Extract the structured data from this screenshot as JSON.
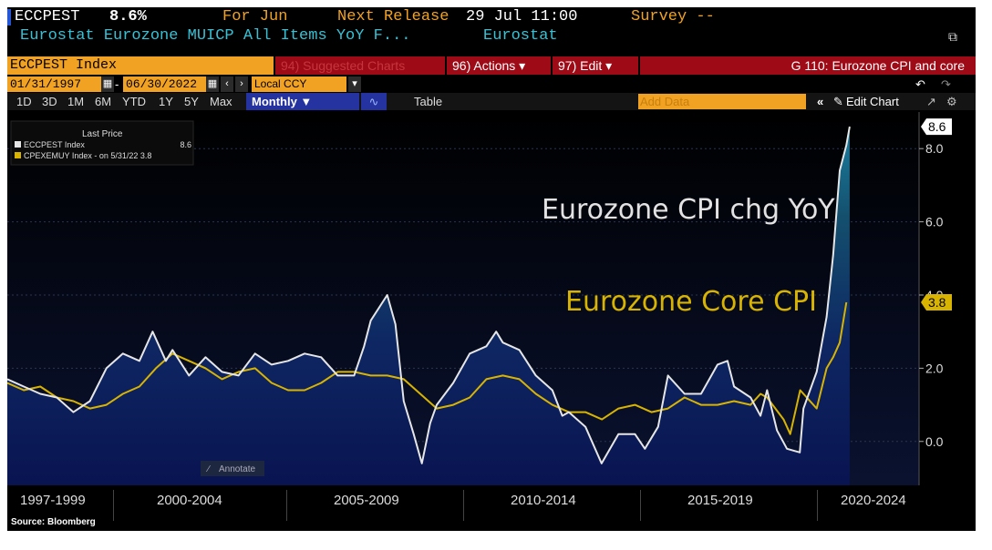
{
  "header": {
    "ticker": "ECCPEST",
    "value": "8.6%",
    "for_label": "For Jun",
    "next_release_label": "Next Release",
    "next_release_value": "29 Jul 11:00",
    "survey": "Survey --",
    "description": "Eurostat Eurozone MUICP All Items YoY F...",
    "source_name": "Eurostat"
  },
  "toolbar": {
    "index_field": "ECCPEST Index",
    "suggested": "94) Suggested Charts",
    "actions": "96) Actions ▾",
    "edit": "97) Edit ▾",
    "chart_title": "G 110: Eurozone CPI and core"
  },
  "range": {
    "start": "01/31/1997",
    "dash": "-",
    "end": "06/30/2022",
    "currency": "Local CCY"
  },
  "periods_bar": {
    "items": [
      "1D",
      "3D",
      "1M",
      "6M",
      "YTD",
      "1Y",
      "5Y",
      "Max"
    ],
    "frequency": "Monthly ▼",
    "table": "Table",
    "add_data": "Add Data",
    "edit_chart": "Edit Chart"
  },
  "legend": {
    "title": "Last Price",
    "s1_name": "ECCPEST Index",
    "s1_value": "8.6",
    "s2_name": "CPEXEMUY Index  -  on 5/31/22 3.8"
  },
  "annotate": "Annotate",
  "bottom": {
    "labels": [
      "1997-1999",
      "2000-2004",
      "2005-2009",
      "2010-2014",
      "2015-2019",
      "2020-2024"
    ],
    "source": "Source: Bloomberg"
  },
  "colors": {
    "accent_orange": "#f1a222",
    "actions_red": "#9e0b16",
    "headline": "#e6e6e6",
    "core": "#d8b400",
    "cyan_text": "#36c2d6"
  },
  "chart_data": {
    "type": "line",
    "title": "",
    "annotations": [
      "Eurozone CPI chg YoY",
      "Eurozone Core CPI"
    ],
    "ylim": [
      -1.2,
      9.0
    ],
    "yticks": [
      0.0,
      2.0,
      4.0,
      6.0,
      8.0
    ],
    "ytick_labels": [
      "0.0",
      "2.0",
      "4.0",
      "6.0",
      "8.0"
    ],
    "series": [
      {
        "name": "ECCPEST Index",
        "last_label": "8.6",
        "points": [
          [
            1997.0,
            1.7
          ],
          [
            1997.5,
            1.5
          ],
          [
            1998.0,
            1.3
          ],
          [
            1998.5,
            1.2
          ],
          [
            1999.0,
            0.8
          ],
          [
            1999.5,
            1.1
          ],
          [
            2000.0,
            2.0
          ],
          [
            2000.5,
            2.4
          ],
          [
            2001.0,
            2.2
          ],
          [
            2001.4,
            3.0
          ],
          [
            2001.8,
            2.2
          ],
          [
            2002.0,
            2.5
          ],
          [
            2002.5,
            1.8
          ],
          [
            2003.0,
            2.3
          ],
          [
            2003.5,
            1.9
          ],
          [
            2004.0,
            1.8
          ],
          [
            2004.5,
            2.4
          ],
          [
            2005.0,
            2.1
          ],
          [
            2005.5,
            2.2
          ],
          [
            2006.0,
            2.4
          ],
          [
            2006.5,
            2.3
          ],
          [
            2007.0,
            1.8
          ],
          [
            2007.5,
            1.8
          ],
          [
            2007.8,
            2.6
          ],
          [
            2008.0,
            3.3
          ],
          [
            2008.5,
            4.0
          ],
          [
            2008.75,
            3.2
          ],
          [
            2009.0,
            1.1
          ],
          [
            2009.3,
            0.2
          ],
          [
            2009.55,
            -0.6
          ],
          [
            2009.8,
            0.5
          ],
          [
            2010.0,
            1.0
          ],
          [
            2010.5,
            1.6
          ],
          [
            2011.0,
            2.4
          ],
          [
            2011.5,
            2.6
          ],
          [
            2011.8,
            3.0
          ],
          [
            2012.0,
            2.7
          ],
          [
            2012.5,
            2.5
          ],
          [
            2013.0,
            1.8
          ],
          [
            2013.5,
            1.4
          ],
          [
            2013.8,
            0.7
          ],
          [
            2014.0,
            0.8
          ],
          [
            2014.5,
            0.4
          ],
          [
            2014.99,
            -0.6
          ],
          [
            2015.5,
            0.2
          ],
          [
            2016.0,
            0.2
          ],
          [
            2016.3,
            -0.2
          ],
          [
            2016.7,
            0.4
          ],
          [
            2017.0,
            1.8
          ],
          [
            2017.5,
            1.3
          ],
          [
            2018.0,
            1.3
          ],
          [
            2018.5,
            2.1
          ],
          [
            2018.8,
            2.2
          ],
          [
            2019.0,
            1.5
          ],
          [
            2019.5,
            1.2
          ],
          [
            2019.8,
            0.7
          ],
          [
            2020.0,
            1.4
          ],
          [
            2020.3,
            0.3
          ],
          [
            2020.6,
            -0.2
          ],
          [
            2020.99,
            -0.3
          ],
          [
            2021.1,
            0.9
          ],
          [
            2021.5,
            1.9
          ],
          [
            2021.8,
            3.4
          ],
          [
            2022.0,
            5.1
          ],
          [
            2022.2,
            7.4
          ],
          [
            2022.4,
            8.1
          ],
          [
            2022.5,
            8.6
          ]
        ]
      },
      {
        "name": "CPEXEMUY Index",
        "last_label": "3.8",
        "points": [
          [
            1997.0,
            1.6
          ],
          [
            1997.5,
            1.4
          ],
          [
            1998.0,
            1.5
          ],
          [
            1998.5,
            1.2
          ],
          [
            1999.0,
            1.1
          ],
          [
            1999.5,
            0.9
          ],
          [
            2000.0,
            1.0
          ],
          [
            2000.5,
            1.3
          ],
          [
            2001.0,
            1.5
          ],
          [
            2001.5,
            2.0
          ],
          [
            2002.0,
            2.4
          ],
          [
            2002.5,
            2.2
          ],
          [
            2003.0,
            2.0
          ],
          [
            2003.5,
            1.7
          ],
          [
            2004.0,
            1.9
          ],
          [
            2004.5,
            2.0
          ],
          [
            2005.0,
            1.6
          ],
          [
            2005.5,
            1.4
          ],
          [
            2006.0,
            1.4
          ],
          [
            2006.5,
            1.6
          ],
          [
            2007.0,
            1.9
          ],
          [
            2007.5,
            1.9
          ],
          [
            2008.0,
            1.8
          ],
          [
            2008.5,
            1.8
          ],
          [
            2009.0,
            1.7
          ],
          [
            2009.5,
            1.3
          ],
          [
            2010.0,
            0.9
          ],
          [
            2010.5,
            1.0
          ],
          [
            2011.0,
            1.2
          ],
          [
            2011.5,
            1.7
          ],
          [
            2012.0,
            1.8
          ],
          [
            2012.5,
            1.7
          ],
          [
            2013.0,
            1.3
          ],
          [
            2013.5,
            1.0
          ],
          [
            2014.0,
            0.8
          ],
          [
            2014.5,
            0.8
          ],
          [
            2015.0,
            0.6
          ],
          [
            2015.5,
            0.9
          ],
          [
            2016.0,
            1.0
          ],
          [
            2016.5,
            0.8
          ],
          [
            2017.0,
            0.9
          ],
          [
            2017.5,
            1.2
          ],
          [
            2018.0,
            1.0
          ],
          [
            2018.5,
            1.0
          ],
          [
            2019.0,
            1.1
          ],
          [
            2019.5,
            1.0
          ],
          [
            2019.8,
            1.3
          ],
          [
            2020.0,
            1.2
          ],
          [
            2020.5,
            0.6
          ],
          [
            2020.7,
            0.2
          ],
          [
            2021.0,
            1.4
          ],
          [
            2021.5,
            0.9
          ],
          [
            2021.8,
            2.0
          ],
          [
            2022.0,
            2.3
          ],
          [
            2022.2,
            2.7
          ],
          [
            2022.4,
            3.8
          ]
        ]
      }
    ]
  }
}
